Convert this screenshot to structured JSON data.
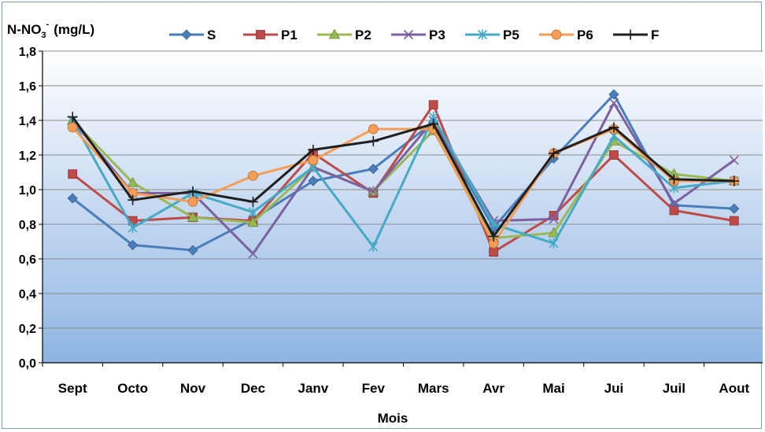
{
  "chart_data": {
    "type": "line",
    "ylabel_main": "N-NO",
    "ylabel_sub": "3",
    "ylabel_sup": "-",
    "ylabel_unit": "(mg/L)",
    "xlabel": "Mois",
    "categories": [
      "Sept",
      "Octo",
      "Nov",
      "Dec",
      "Janv",
      "Fev",
      "Mars",
      "Avr",
      "Mai",
      "Jui",
      "Juil",
      "Aout"
    ],
    "ylim": [
      0,
      1.8
    ],
    "yticks": [
      "0,0",
      "0,2",
      "0,4",
      "0,6",
      "0,8",
      "1,0",
      "1,2",
      "1,4",
      "1,6",
      "1,8"
    ],
    "grid": true,
    "legend_position": "top",
    "series": [
      {
        "name": "S",
        "color": "#4a7ebb",
        "marker": "diamond",
        "values": [
          0.95,
          0.68,
          0.65,
          0.83,
          1.05,
          1.12,
          1.39,
          0.78,
          1.18,
          1.55,
          0.91,
          0.89
        ]
      },
      {
        "name": "P1",
        "color": "#be4b48",
        "marker": "square",
        "values": [
          1.09,
          0.82,
          0.84,
          0.82,
          1.21,
          0.98,
          1.49,
          0.64,
          0.85,
          1.2,
          0.88,
          0.82
        ]
      },
      {
        "name": "P2",
        "color": "#98b954",
        "marker": "triangle",
        "values": [
          1.4,
          1.04,
          0.84,
          0.81,
          1.13,
          0.99,
          1.34,
          0.72,
          0.75,
          1.28,
          1.09,
          1.05
        ]
      },
      {
        "name": "P3",
        "color": "#7d60a0",
        "marker": "x",
        "values": [
          1.4,
          0.98,
          0.98,
          0.63,
          1.13,
          0.99,
          1.4,
          0.82,
          0.83,
          1.5,
          0.92,
          1.17
        ]
      },
      {
        "name": "P5",
        "color": "#46aac5",
        "marker": "star",
        "values": [
          1.4,
          0.78,
          0.98,
          0.87,
          1.13,
          0.67,
          1.42,
          0.8,
          0.69,
          1.31,
          1.01,
          1.05
        ]
      },
      {
        "name": "P6",
        "color": "#f59d56",
        "marker": "circle",
        "values": [
          1.36,
          0.98,
          0.93,
          1.08,
          1.17,
          1.35,
          1.35,
          0.69,
          1.21,
          1.35,
          1.05,
          1.05
        ]
      },
      {
        "name": "F",
        "color": "#1f1f1f",
        "marker": "plus",
        "values": [
          1.42,
          0.94,
          0.99,
          0.93,
          1.23,
          1.28,
          1.38,
          0.73,
          1.21,
          1.36,
          1.06,
          1.05
        ]
      }
    ]
  }
}
